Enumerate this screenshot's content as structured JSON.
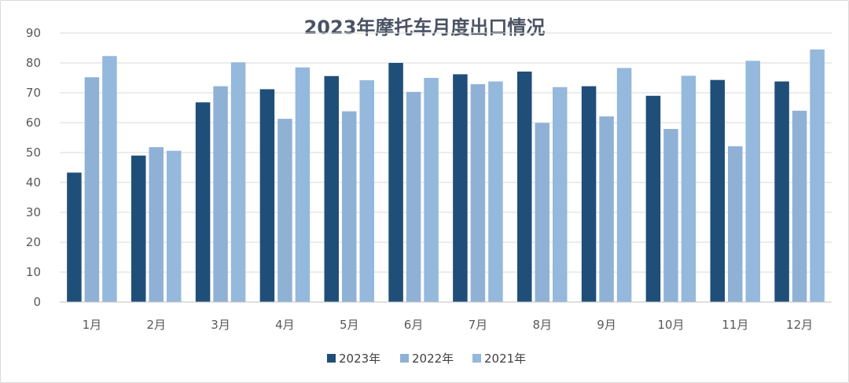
{
  "chart_data": {
    "type": "bar",
    "title": "2023年摩托车月度出口情况",
    "categories": [
      "1月",
      "2月",
      "3月",
      "4月",
      "5月",
      "6月",
      "7月",
      "8月",
      "9月",
      "10月",
      "11月",
      "12月"
    ],
    "series": [
      {
        "name": "2023年",
        "color": "#1f4e79",
        "values": [
          43.3,
          49,
          66.8,
          71.2,
          75.6,
          80,
          76.2,
          77.1,
          72.2,
          69,
          74.3,
          73.8
        ]
      },
      {
        "name": "2022年",
        "color": "#8fb1d6",
        "values": [
          75.2,
          51.8,
          72.2,
          61.3,
          63.8,
          70.3,
          72.9,
          59.9,
          62.1,
          57.9,
          52.1,
          64
        ]
      },
      {
        "name": "2021年",
        "color": "#95b8dd",
        "values": [
          82.3,
          50.6,
          80.2,
          78.5,
          74.2,
          75,
          73.8,
          71.9,
          78.3,
          75.7,
          80.7,
          84.5
        ]
      }
    ],
    "ylim": [
      0,
      90
    ],
    "yticks": [
      0,
      10,
      20,
      30,
      40,
      50,
      60,
      70,
      80,
      90
    ],
    "xlabel": "",
    "ylabel": "",
    "grid": true,
    "legend": "bottom"
  }
}
